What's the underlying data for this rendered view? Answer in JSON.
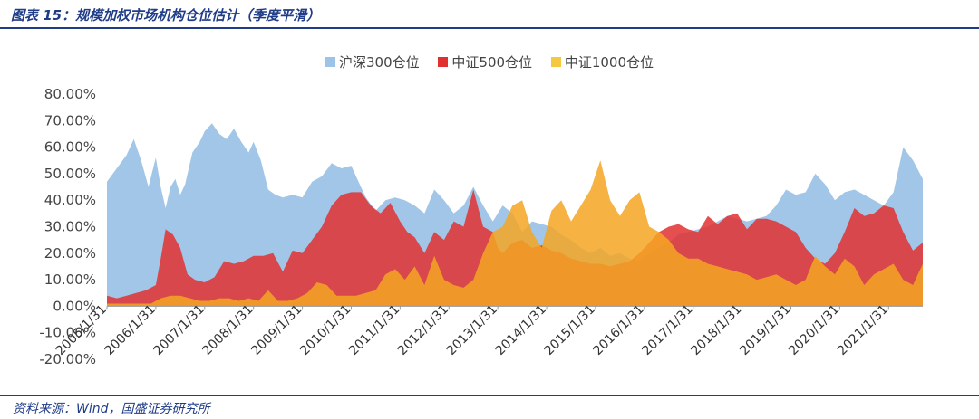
{
  "header": {
    "title": "图表 15：规模加权市场机构仓位估计（季度平滑）"
  },
  "footer": {
    "source": "资料来源：Wind，国盛证券研究所"
  },
  "chart_data": {
    "type": "area",
    "title": "",
    "xlabel": "",
    "ylabel": "",
    "ylim": [
      -20,
      80
    ],
    "y_ticks": [
      "-20.00%",
      "-10.00%",
      "0.00%",
      "10.00%",
      "20.00%",
      "30.00%",
      "40.00%",
      "50.00%",
      "60.00%",
      "70.00%",
      "80.00%"
    ],
    "x_ticks": [
      "2005/1/31",
      "2006/1/31",
      "2007/1/31",
      "2008/1/31",
      "2009/1/31",
      "2010/1/31",
      "2011/1/31",
      "2012/1/31",
      "2013/1/31",
      "2014/1/31",
      "2015/1/31",
      "2016/1/31",
      "2017/1/31",
      "2018/1/31",
      "2019/1/31",
      "2020/1/31",
      "2021/1/31"
    ],
    "x_start_year": 2005.0,
    "x_end_year": 2021.7,
    "legend_position": "top-center",
    "grid": false,
    "series": [
      {
        "name": "沪深300仓位",
        "color": "#9dc3e6",
        "x": [
          2005.0,
          2005.2,
          2005.4,
          2005.55,
          2005.7,
          2005.85,
          2006.0,
          2006.1,
          2006.2,
          2006.3,
          2006.4,
          2006.5,
          2006.6,
          2006.75,
          2006.9,
          2007.0,
          2007.15,
          2007.3,
          2007.45,
          2007.6,
          2007.75,
          2007.9,
          2008.0,
          2008.15,
          2008.3,
          2008.45,
          2008.6,
          2008.8,
          2009.0,
          2009.2,
          2009.4,
          2009.6,
          2009.8,
          2010.0,
          2010.15,
          2010.3,
          2010.5,
          2010.7,
          2010.9,
          2011.1,
          2011.3,
          2011.5,
          2011.7,
          2011.9,
          2012.1,
          2012.3,
          2012.5,
          2012.7,
          2012.9,
          2013.1,
          2013.3,
          2013.5,
          2013.7,
          2013.9,
          2014.1,
          2014.3,
          2014.5,
          2014.7,
          2014.9,
          2015.1,
          2015.3,
          2015.5,
          2015.7,
          2015.9,
          2016.1,
          2016.3,
          2016.5,
          2016.7,
          2016.9,
          2017.1,
          2017.3,
          2017.5,
          2017.7,
          2017.9,
          2018.1,
          2018.3,
          2018.5,
          2018.7,
          2018.9,
          2019.1,
          2019.3,
          2019.5,
          2019.7,
          2019.9,
          2020.1,
          2020.3,
          2020.5,
          2020.7,
          2020.9,
          2021.1,
          2021.3,
          2021.5,
          2021.7
        ],
        "values": [
          47,
          52,
          57,
          63,
          55,
          45,
          56,
          45,
          37,
          45,
          48,
          42,
          46,
          58,
          62,
          66,
          69,
          65,
          63,
          67,
          62,
          58,
          62,
          55,
          44,
          42,
          41,
          42,
          41,
          47,
          49,
          54,
          52,
          53,
          47,
          41,
          36,
          40,
          41,
          40,
          38,
          35,
          44,
          40,
          35,
          38,
          45,
          38,
          32,
          38,
          35,
          28,
          32,
          31,
          30,
          27,
          25,
          22,
          20,
          22,
          19,
          20,
          18,
          17,
          20,
          22,
          24,
          27,
          28,
          29,
          30,
          32,
          34,
          33,
          32,
          33,
          34,
          38,
          44,
          42,
          43,
          50,
          46,
          40,
          43,
          44,
          42,
          40,
          38,
          43,
          60,
          55,
          48
        ]
      },
      {
        "name": "中证500仓位",
        "color": "#e03030",
        "x": [
          2005.0,
          2005.2,
          2005.4,
          2005.6,
          2005.8,
          2006.0,
          2006.1,
          2006.2,
          2006.35,
          2006.5,
          2006.65,
          2006.8,
          2007.0,
          2007.2,
          2007.4,
          2007.6,
          2007.8,
          2008.0,
          2008.2,
          2008.4,
          2008.6,
          2008.8,
          2009.0,
          2009.2,
          2009.4,
          2009.6,
          2009.8,
          2010.0,
          2010.2,
          2010.4,
          2010.6,
          2010.8,
          2011.0,
          2011.15,
          2011.3,
          2011.5,
          2011.7,
          2011.9,
          2012.1,
          2012.3,
          2012.5,
          2012.7,
          2012.9,
          2013.0,
          2013.1,
          2013.3,
          2013.5,
          2013.7,
          2013.9,
          2014.1,
          2014.3,
          2014.5,
          2014.7,
          2014.9,
          2015.1,
          2015.3,
          2015.5,
          2015.7,
          2015.9,
          2016.1,
          2016.3,
          2016.5,
          2016.7,
          2016.9,
          2017.1,
          2017.3,
          2017.5,
          2017.7,
          2017.9,
          2018.1,
          2018.3,
          2018.5,
          2018.7,
          2018.9,
          2019.1,
          2019.3,
          2019.5,
          2019.7,
          2019.9,
          2020.1,
          2020.3,
          2020.5,
          2020.7,
          2020.9,
          2021.1,
          2021.3,
          2021.5,
          2021.7
        ],
        "values": [
          4,
          3,
          4,
          5,
          6,
          8,
          18,
          29,
          27,
          22,
          12,
          10,
          9,
          11,
          17,
          16,
          17,
          19,
          19,
          20,
          13,
          21,
          20,
          25,
          30,
          38,
          42,
          43,
          43,
          38,
          35,
          39,
          32,
          28,
          26,
          20,
          28,
          25,
          32,
          30,
          44,
          30,
          28,
          22,
          20,
          24,
          25,
          22,
          23,
          21,
          20,
          18,
          17,
          16,
          16,
          15,
          16,
          17,
          20,
          24,
          28,
          30,
          31,
          29,
          28,
          34,
          31,
          34,
          35,
          29,
          33,
          33,
          32,
          30,
          28,
          22,
          18,
          16,
          20,
          28,
          37,
          34,
          35,
          38,
          37,
          28,
          21,
          24
        ]
      },
      {
        "name": "中证1000仓位",
        "color": "#f5a623",
        "x": [
          2005.0,
          2005.3,
          2005.6,
          2005.9,
          2006.1,
          2006.3,
          2006.5,
          2006.7,
          2006.9,
          2007.1,
          2007.3,
          2007.5,
          2007.7,
          2007.9,
          2008.1,
          2008.3,
          2008.5,
          2008.7,
          2008.9,
          2009.1,
          2009.3,
          2009.5,
          2009.7,
          2009.9,
          2010.1,
          2010.3,
          2010.5,
          2010.7,
          2010.9,
          2011.1,
          2011.3,
          2011.5,
          2011.7,
          2011.9,
          2012.1,
          2012.3,
          2012.5,
          2012.7,
          2012.9,
          2013.1,
          2013.3,
          2013.5,
          2013.7,
          2013.9,
          2014.1,
          2014.3,
          2014.5,
          2014.7,
          2014.9,
          2015.1,
          2015.3,
          2015.5,
          2015.7,
          2015.9,
          2016.1,
          2016.3,
          2016.5,
          2016.7,
          2016.9,
          2017.1,
          2017.3,
          2017.5,
          2017.7,
          2017.9,
          2018.1,
          2018.3,
          2018.5,
          2018.7,
          2018.9,
          2019.1,
          2019.3,
          2019.5,
          2019.7,
          2019.9,
          2020.1,
          2020.3,
          2020.5,
          2020.7,
          2020.9,
          2021.1,
          2021.3,
          2021.5,
          2021.7
        ],
        "values": [
          1,
          1,
          1,
          1,
          3,
          4,
          4,
          3,
          2,
          2,
          3,
          3,
          2,
          3,
          2,
          6,
          2,
          2,
          3,
          5,
          9,
          8,
          4,
          4,
          4,
          5,
          6,
          12,
          14,
          10,
          15,
          8,
          19,
          10,
          8,
          7,
          10,
          20,
          28,
          30,
          38,
          40,
          28,
          22,
          36,
          40,
          32,
          38,
          44,
          55,
          40,
          34,
          40,
          43,
          30,
          28,
          25,
          20,
          18,
          18,
          16,
          15,
          14,
          13,
          12,
          10,
          11,
          12,
          10,
          8,
          10,
          19,
          15,
          12,
          18,
          15,
          8,
          12,
          14,
          16,
          10,
          8,
          16
        ]
      }
    ]
  }
}
